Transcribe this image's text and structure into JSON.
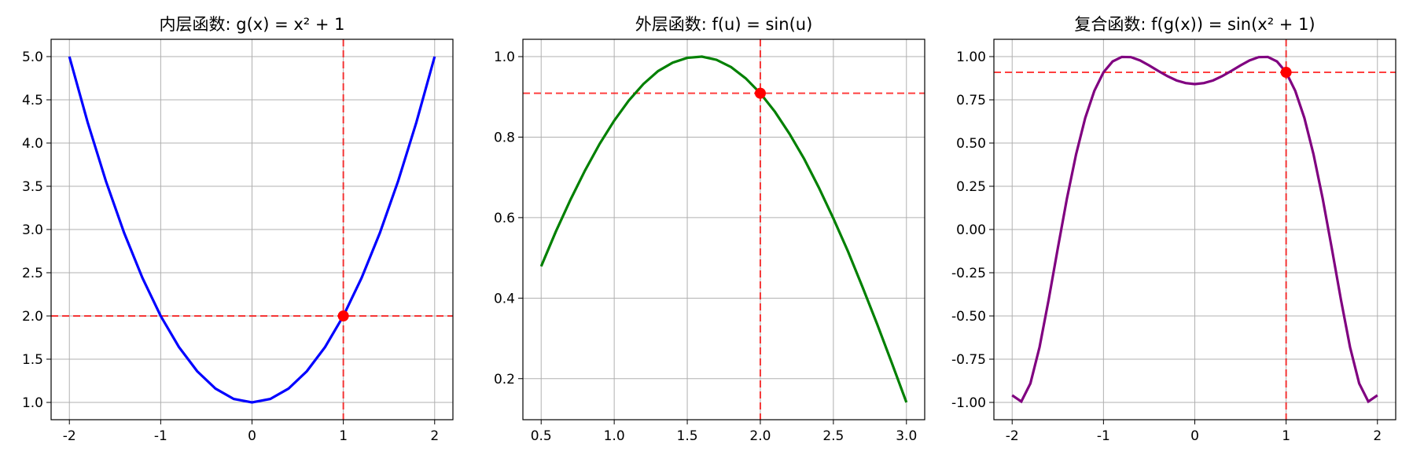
{
  "chart_data": [
    {
      "type": "line",
      "title": "内层函数: g(x) = x² + 1",
      "x": [
        -2,
        -1.8,
        -1.6,
        -1.4,
        -1.2,
        -1,
        -0.8,
        -0.6,
        -0.4,
        -0.2,
        0,
        0.2,
        0.4,
        0.6,
        0.8,
        1,
        1.2,
        1.4,
        1.6,
        1.8,
        2
      ],
      "series": [
        {
          "color": "#0000ff",
          "values": [
            5,
            4.24,
            3.56,
            2.96,
            2.44,
            2,
            1.64,
            1.36,
            1.16,
            1.04,
            1,
            1.04,
            1.16,
            1.36,
            1.64,
            2,
            2.44,
            2.96,
            3.56,
            4.24,
            5
          ]
        }
      ],
      "point": {
        "x": 1,
        "y": 2,
        "color": "#ff0000"
      },
      "xlim": [
        -2.2,
        2.2
      ],
      "ylim": [
        0.8,
        5.2
      ],
      "xticks": [
        -2,
        -1,
        0,
        1,
        2
      ],
      "yticks": [
        {
          "value": 1,
          "label": "1.0"
        },
        1.5,
        {
          "value": 2,
          "label": "2.0"
        },
        2.5,
        {
          "value": 3,
          "label": "3.0"
        },
        3.5,
        {
          "value": 4,
          "label": "4.0"
        },
        4.5,
        {
          "value": 5,
          "label": "5.0"
        }
      ],
      "grid": true
    },
    {
      "type": "line",
      "title": "外层函数: f(u) = sin(u)",
      "x": [
        0.5,
        0.6,
        0.7,
        0.8,
        0.9,
        1.0,
        1.1,
        1.2,
        1.3,
        1.4,
        1.5,
        1.6,
        1.7,
        1.8,
        1.9,
        2.0,
        2.1,
        2.2,
        2.3,
        2.4,
        2.5,
        2.6,
        2.7,
        2.8,
        2.9,
        3.0
      ],
      "series": [
        {
          "color": "#008000",
          "values": [
            0.479,
            0.565,
            0.644,
            0.717,
            0.783,
            0.841,
            0.891,
            0.932,
            0.964,
            0.985,
            0.997,
            1.0,
            0.992,
            0.974,
            0.946,
            0.909,
            0.863,
            0.808,
            0.746,
            0.675,
            0.598,
            0.516,
            0.427,
            0.335,
            0.239,
            0.141
          ]
        }
      ],
      "point": {
        "x": 2,
        "y": 0.909,
        "color": "#ff0000"
      },
      "xlim": [
        0.375,
        3.125
      ],
      "ylim": [
        0.098,
        1.043
      ],
      "xticks": [
        0.5,
        {
          "value": 1,
          "label": "1.0"
        },
        1.5,
        {
          "value": 2,
          "label": "2.0"
        },
        2.5,
        {
          "value": 3,
          "label": "3.0"
        }
      ],
      "yticks": [
        0.2,
        0.4,
        0.6,
        0.8,
        {
          "value": 1,
          "label": "1.0"
        }
      ],
      "grid": true
    },
    {
      "type": "line",
      "title": "复合函数: f(g(x)) = sin(x² + 1)",
      "x": [
        -2,
        -1.9,
        -1.8,
        -1.7,
        -1.6,
        -1.5,
        -1.4,
        -1.3,
        -1.2,
        -1.1,
        -1,
        -0.9,
        -0.8,
        -0.7,
        -0.6,
        -0.5,
        -0.4,
        -0.3,
        -0.2,
        -0.1,
        0,
        0.1,
        0.2,
        0.3,
        0.4,
        0.5,
        0.6,
        0.7,
        0.8,
        0.9,
        1,
        1.1,
        1.2,
        1.3,
        1.4,
        1.5,
        1.6,
        1.7,
        1.8,
        1.9,
        2
      ],
      "series": [
        {
          "color": "#800080",
          "values": [
            -0.959,
            -0.995,
            -0.89,
            -0.68,
            -0.405,
            -0.108,
            0.18,
            0.435,
            0.645,
            0.802,
            0.909,
            0.972,
            0.998,
            0.997,
            0.978,
            0.949,
            0.917,
            0.887,
            0.862,
            0.847,
            0.841,
            0.847,
            0.862,
            0.887,
            0.917,
            0.949,
            0.978,
            0.997,
            0.998,
            0.972,
            0.909,
            0.802,
            0.645,
            0.435,
            0.18,
            -0.108,
            -0.405,
            -0.68,
            -0.89,
            -0.995,
            -0.959
          ]
        }
      ],
      "point": {
        "x": 1,
        "y": 0.909,
        "color": "#ff0000"
      },
      "xlim": [
        -2.2,
        2.2
      ],
      "ylim": [
        -1.1,
        1.1
      ],
      "xticks": [
        -2,
        -1,
        0,
        1,
        2
      ],
      "yticks": [
        {
          "value": -1,
          "label": "-1.00"
        },
        -0.75,
        {
          "value": -0.5,
          "label": "-0.50"
        },
        -0.25,
        {
          "value": 0,
          "label": "0.00"
        },
        0.25,
        {
          "value": 0.5,
          "label": "0.50"
        },
        0.75,
        {
          "value": 1,
          "label": "1.00"
        }
      ],
      "grid": true
    }
  ]
}
